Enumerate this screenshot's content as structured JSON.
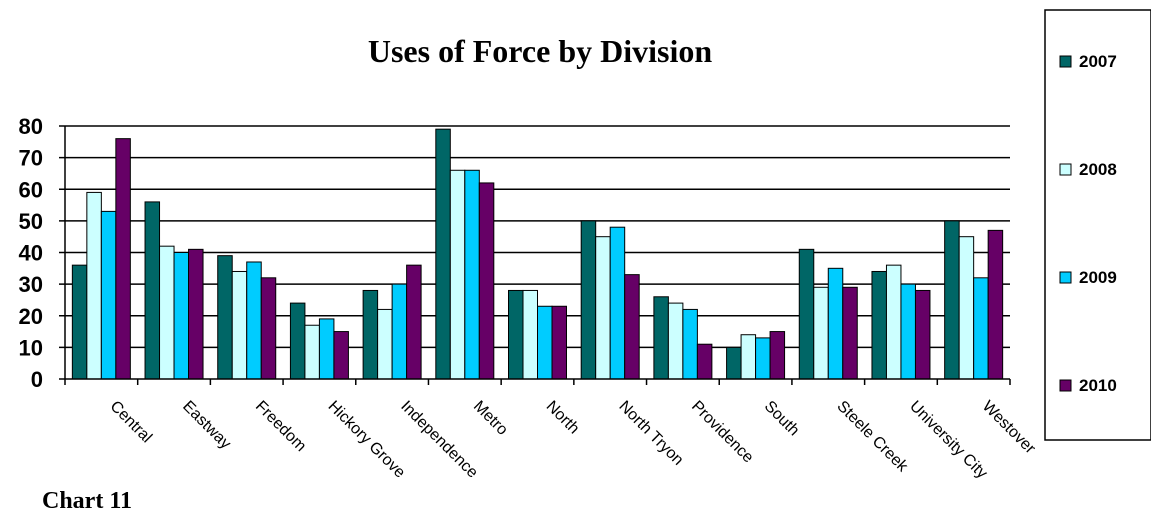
{
  "chart_data": {
    "type": "bar",
    "title": "Uses of Force by Division",
    "xlabel": "",
    "ylabel": "",
    "ylim": [
      0,
      80
    ],
    "yticks": [
      0,
      10,
      20,
      30,
      40,
      50,
      60,
      70,
      80
    ],
    "grid": true,
    "legend_position": "right",
    "categories": [
      "Central",
      "Eastway",
      "Freedom",
      "Hickory Grove",
      "Independence",
      "Metro",
      "North",
      "North Tryon",
      "Providence",
      "South",
      "Steele Creek",
      "University City",
      "Westover"
    ],
    "series": [
      {
        "name": "2007",
        "color": "#006666",
        "values": [
          36,
          56,
          39,
          24,
          28,
          79,
          28,
          50,
          26,
          10,
          41,
          34,
          50
        ]
      },
      {
        "name": "2008",
        "color": "#CCFFFF",
        "values": [
          59,
          42,
          34,
          17,
          22,
          66,
          28,
          45,
          24,
          14,
          29,
          36,
          45
        ]
      },
      {
        "name": "2009",
        "color": "#00CCFF",
        "values": [
          53,
          40,
          37,
          19,
          30,
          66,
          23,
          48,
          22,
          13,
          35,
          30,
          32
        ]
      },
      {
        "name": "2010",
        "color": "#660066",
        "values": [
          76,
          41,
          32,
          15,
          36,
          62,
          23,
          33,
          11,
          15,
          29,
          28,
          47
        ]
      }
    ]
  },
  "caption": "Chart 11"
}
